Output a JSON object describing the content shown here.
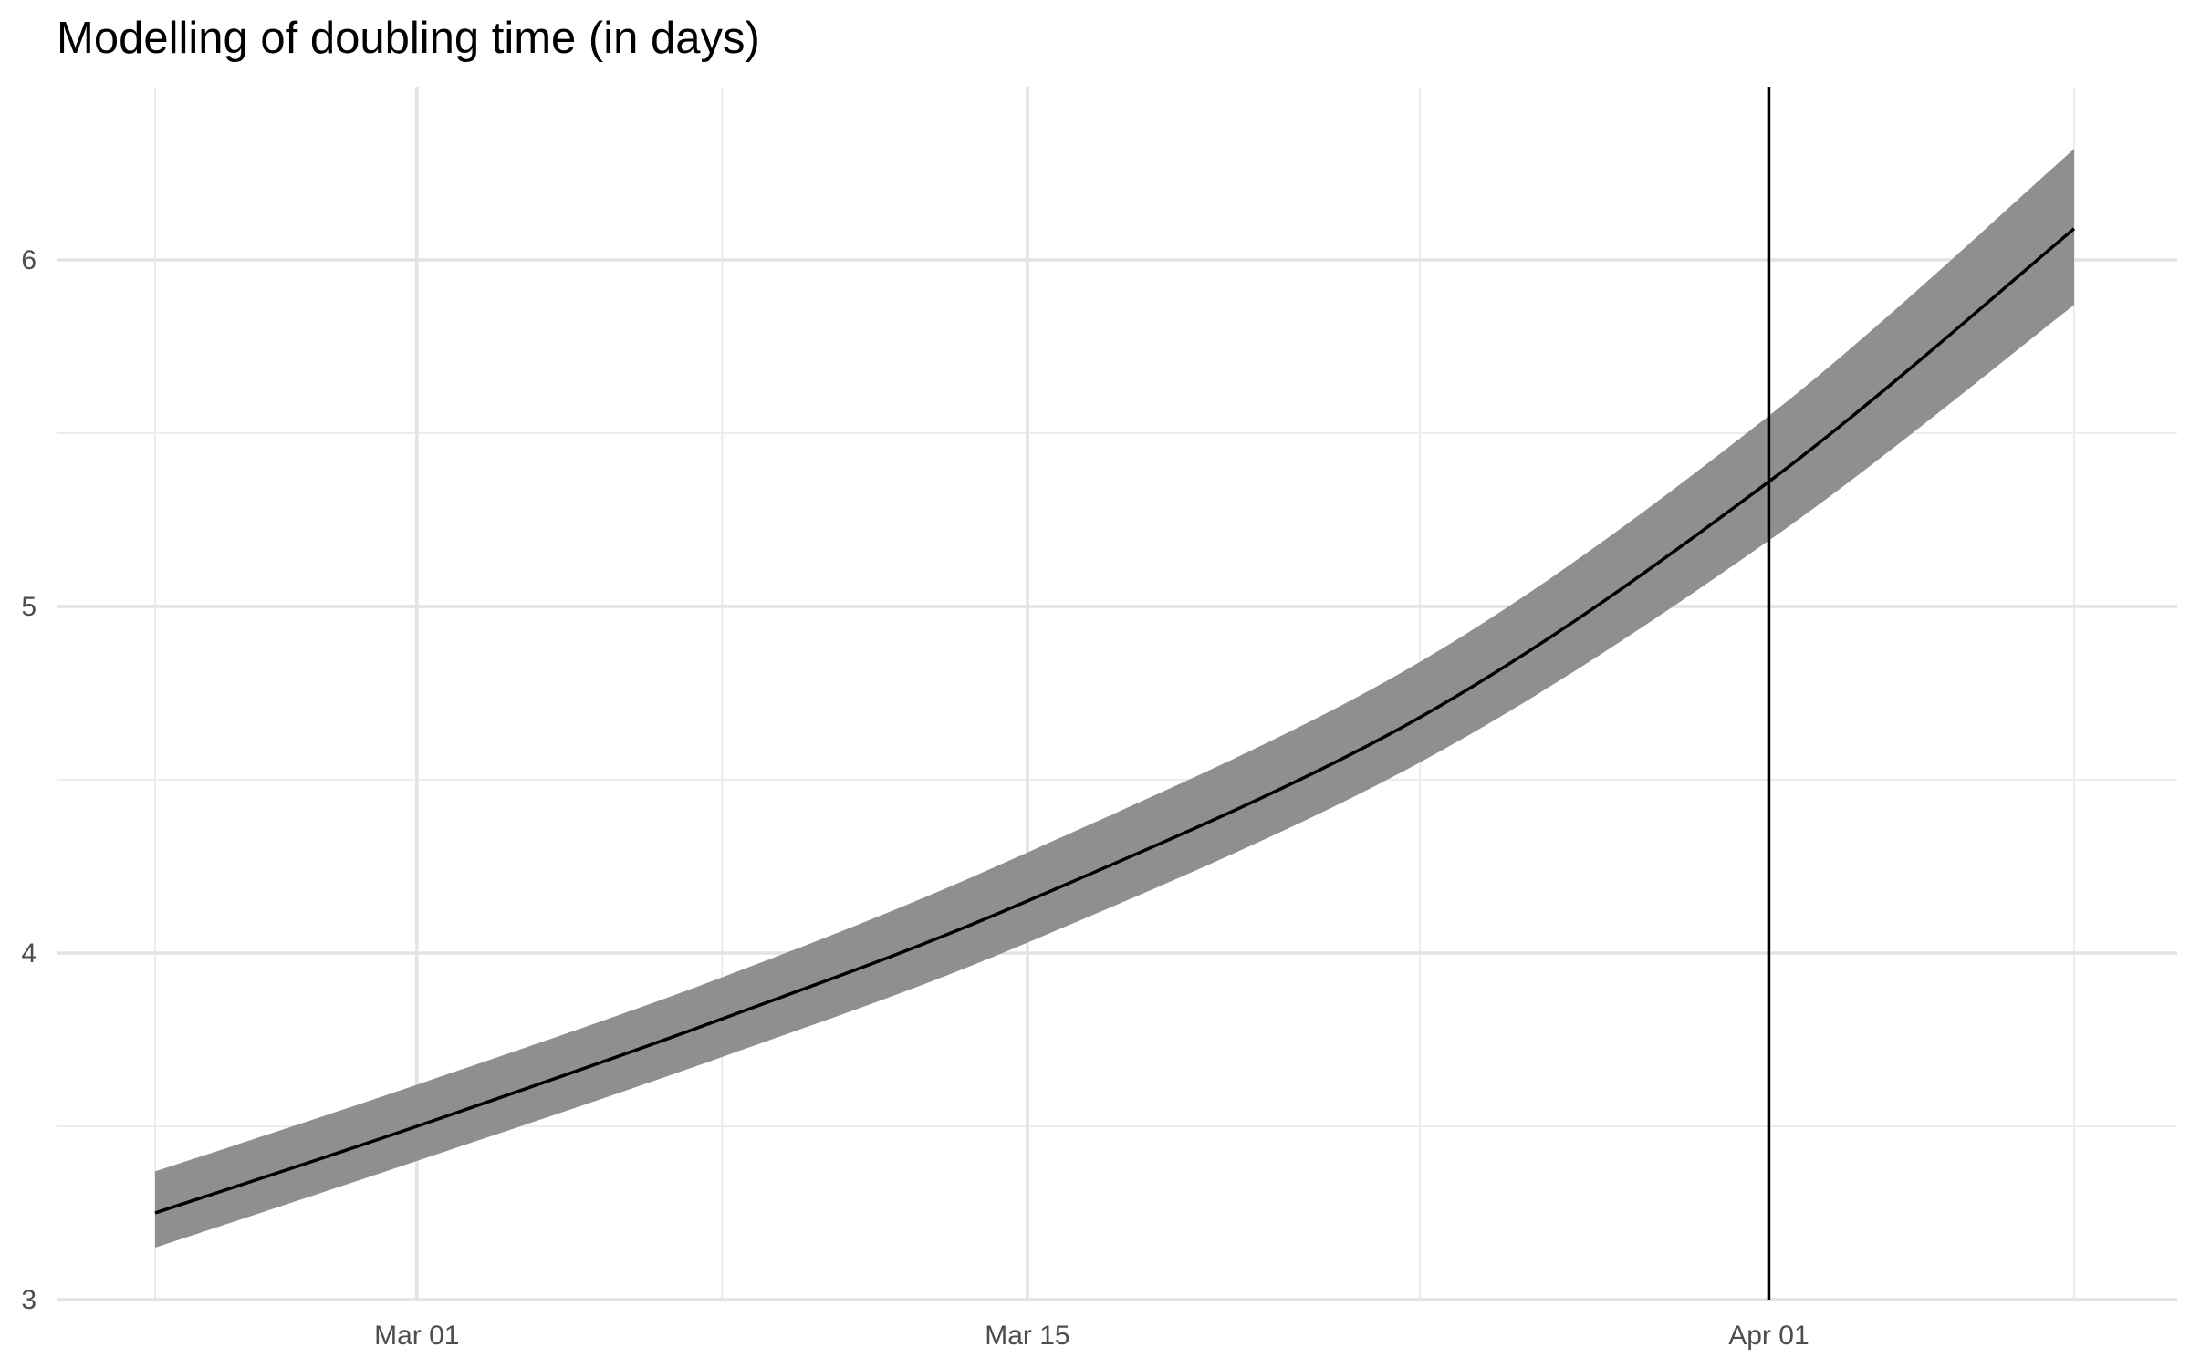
{
  "chart_data": {
    "type": "line",
    "title": "Modelling of doubling time (in days)",
    "xlabel": "",
    "ylabel": "",
    "x_start": "2020-02-24",
    "x_end": "2020-04-08",
    "x_ticks": [
      {
        "date": "2020-03-01",
        "label": "Mar 01"
      },
      {
        "date": "2020-03-15",
        "label": "Mar 15"
      },
      {
        "date": "2020-04-01",
        "label": "Apr 01"
      }
    ],
    "x_minor_grid_dates": [
      "2020-02-24",
      "2020-03-08",
      "2020-03-24",
      "2020-04-08"
    ],
    "ylim": [
      3,
      6.5
    ],
    "y_ticks": [
      3,
      4,
      5,
      6
    ],
    "y_minor_grid": [
      3.5,
      4.5,
      5.5
    ],
    "grid": true,
    "vline": {
      "date": "2020-04-01",
      "color": "#000000"
    },
    "series": [
      {
        "type": "line",
        "color": "#000000",
        "points": [
          {
            "date": "2020-02-24",
            "y": 3.25
          },
          {
            "date": "2020-03-01",
            "y": 3.5
          },
          {
            "date": "2020-03-08",
            "y": 3.81
          },
          {
            "date": "2020-03-15",
            "y": 4.15
          },
          {
            "date": "2020-03-24",
            "y": 4.68
          },
          {
            "date": "2020-04-01",
            "y": 5.36
          },
          {
            "date": "2020-04-08",
            "y": 6.09
          }
        ]
      },
      {
        "type": "ribbon",
        "color": "#8f8f8f",
        "points": [
          {
            "date": "2020-02-24",
            "lower": 3.15,
            "upper": 3.37
          },
          {
            "date": "2020-03-01",
            "lower": 3.4,
            "upper": 3.62
          },
          {
            "date": "2020-03-08",
            "lower": 3.7,
            "upper": 3.93
          },
          {
            "date": "2020-03-15",
            "lower": 4.03,
            "upper": 4.29
          },
          {
            "date": "2020-03-24",
            "lower": 4.55,
            "upper": 4.84
          },
          {
            "date": "2020-04-01",
            "lower": 5.19,
            "upper": 5.55
          },
          {
            "date": "2020-04-08",
            "lower": 5.87,
            "upper": 6.32
          }
        ]
      }
    ]
  },
  "colors": {
    "background": "#ffffff",
    "grid_major": "#e3e3e3",
    "grid_minor": "#ececec",
    "ribbon": "#8f8f8f",
    "line": "#000000",
    "tick_label": "#4d4d4d"
  }
}
